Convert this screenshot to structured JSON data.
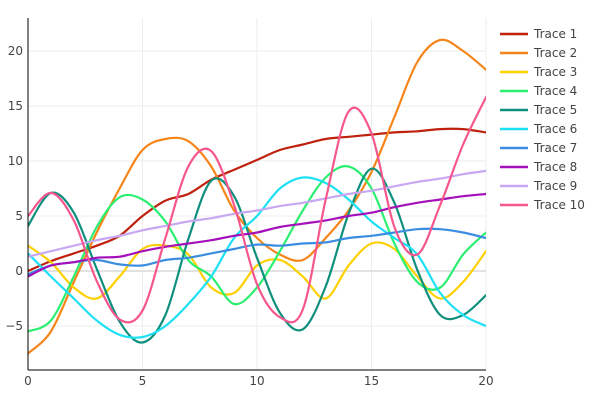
{
  "chart_data": {
    "type": "line",
    "title": "",
    "xlabel": "",
    "ylabel": "",
    "xlim": [
      0,
      20
    ],
    "ylim": [
      -9,
      23
    ],
    "x_ticks": [
      0,
      5,
      10,
      15,
      20
    ],
    "y_ticks": [
      -5,
      0,
      5,
      10,
      15,
      20
    ],
    "x_tick_labels": [
      "0",
      "5",
      "10",
      "15",
      "20"
    ],
    "y_tick_labels": [
      "−5",
      "0",
      "5",
      "10",
      "15",
      "20"
    ],
    "grid": true,
    "legend_position": "top-right",
    "x": [
      0,
      1,
      2,
      3,
      4,
      5,
      6,
      7,
      8,
      9,
      10,
      11,
      12,
      13,
      14,
      15,
      16,
      17,
      18,
      19,
      20
    ],
    "series": [
      {
        "name": "Trace 1",
        "color": "#c0200e",
        "values": [
          0,
          0.9,
          1.6,
          2.3,
          3.2,
          5.0,
          6.4,
          7.0,
          8.3,
          9.2,
          10.1,
          11.0,
          11.5,
          12.0,
          12.2,
          12.4,
          12.6,
          12.7,
          12.9,
          12.9,
          12.6
        ]
      },
      {
        "name": "Trace 2",
        "color": "#f58518",
        "values": [
          -7.5,
          -5.5,
          -1.0,
          3.5,
          7.5,
          11.0,
          12.0,
          11.8,
          9.5,
          5.5,
          3.0,
          1.5,
          1.0,
          3.0,
          5.5,
          9.0,
          14.0,
          19.0,
          21.0,
          20.0,
          18.3
        ]
      },
      {
        "name": "Trace 3",
        "color": "#ffd000",
        "values": [
          2.3,
          0.8,
          -1.5,
          -2.5,
          -0.5,
          2.0,
          2.3,
          1.5,
          -1.5,
          -2.0,
          0.5,
          1.0,
          -0.5,
          -2.5,
          0.5,
          2.5,
          2.0,
          -0.5,
          -2.5,
          -1.0,
          1.8
        ]
      },
      {
        "name": "Trace 4",
        "color": "#2bef70",
        "values": [
          -5.5,
          -4.5,
          -0.5,
          4.0,
          6.7,
          6.5,
          4.5,
          1.0,
          -0.5,
          -3.0,
          -1.5,
          1.8,
          5.5,
          8.5,
          9.5,
          7.5,
          2.5,
          -1.0,
          -1.5,
          1.5,
          3.5
        ]
      },
      {
        "name": "Trace 5",
        "color": "#0f8f7d",
        "values": [
          4.1,
          7.1,
          5.3,
          0.2,
          -4.6,
          -6.5,
          -4.0,
          2.9,
          8.2,
          6.8,
          1.2,
          -3.8,
          -5.3,
          -1.4,
          5.2,
          9.3,
          6.2,
          0.1,
          -4.0,
          -4.0,
          -2.2
        ]
      },
      {
        "name": "Trace 6",
        "color": "#1ee0f5",
        "values": [
          1.6,
          -0.5,
          -2.5,
          -4.5,
          -5.8,
          -6.0,
          -5.0,
          -3.0,
          -0.5,
          3.0,
          5.0,
          7.5,
          8.5,
          8.0,
          6.5,
          4.5,
          3.0,
          1.5,
          -2.0,
          -4.0,
          -5.0
        ]
      },
      {
        "name": "Trace 7",
        "color": "#3a8de0",
        "values": [
          -0.3,
          0.5,
          0.8,
          1.0,
          0.6,
          0.5,
          1.0,
          1.2,
          1.6,
          2.0,
          2.4,
          2.3,
          2.5,
          2.6,
          3.0,
          3.2,
          3.5,
          3.8,
          3.8,
          3.5,
          3.0
        ]
      },
      {
        "name": "Trace 8",
        "color": "#a411ba",
        "values": [
          -0.5,
          0.5,
          0.8,
          1.2,
          1.3,
          1.8,
          2.2,
          2.5,
          2.8,
          3.2,
          3.5,
          4.0,
          4.3,
          4.6,
          5.0,
          5.3,
          5.8,
          6.2,
          6.5,
          6.8,
          7.0
        ]
      },
      {
        "name": "Trace 9",
        "color": "#c8a8f2",
        "values": [
          1.3,
          1.8,
          2.3,
          2.8,
          3.2,
          3.7,
          4.1,
          4.5,
          4.8,
          5.2,
          5.5,
          5.9,
          6.2,
          6.6,
          7.0,
          7.3,
          7.7,
          8.1,
          8.4,
          8.8,
          9.1
        ]
      },
      {
        "name": "Trace 10",
        "color": "#f5578d",
        "values": [
          5.0,
          7.1,
          4.6,
          -0.9,
          -4.4,
          -3.6,
          3.0,
          9.5,
          10.9,
          6.0,
          -1.2,
          -4.2,
          -3.5,
          6.5,
          14.5,
          12.5,
          4.0,
          1.5,
          6.0,
          11.5,
          15.8
        ]
      }
    ]
  }
}
